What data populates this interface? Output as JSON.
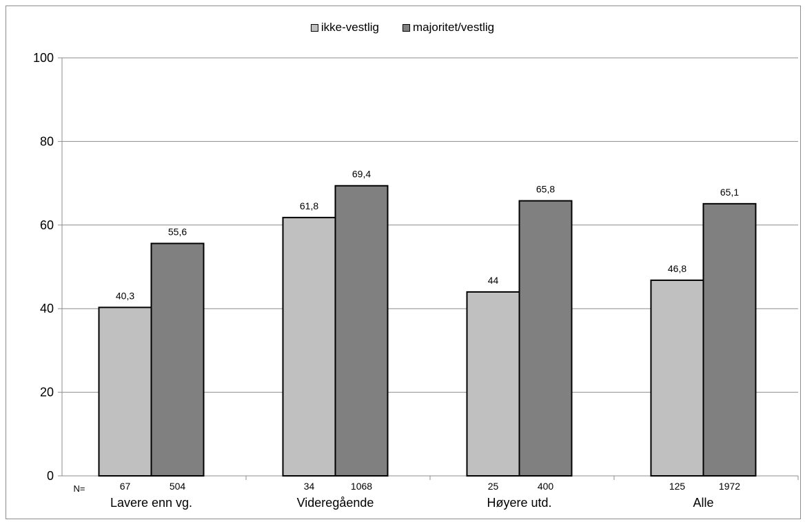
{
  "chart_data": {
    "type": "bar",
    "categories": [
      "Lavere enn vg.",
      "Videregående",
      "Høyere utd.",
      "Alle"
    ],
    "series": [
      {
        "name": "ikke-vestlig",
        "values": [
          40.3,
          61.8,
          44,
          46.8
        ],
        "labels": [
          "40,3",
          "61,8",
          "44",
          "46,8"
        ],
        "n": [
          "67",
          "34",
          "25",
          "125"
        ],
        "color": "#c0c0c0"
      },
      {
        "name": "majoritet/vestlig",
        "values": [
          55.6,
          69.4,
          65.8,
          65.1
        ],
        "labels": [
          "55,6",
          "69,4",
          "65,8",
          "65,1"
        ],
        "n": [
          "504",
          "1068",
          "400",
          "1972"
        ],
        "color": "#808080"
      }
    ],
    "yticks": [
      "0",
      "20",
      "40",
      "60",
      "80",
      "100"
    ],
    "ylim": [
      0,
      100
    ],
    "n_prefix": "N=",
    "grid": true,
    "legend_position": "top-center"
  }
}
